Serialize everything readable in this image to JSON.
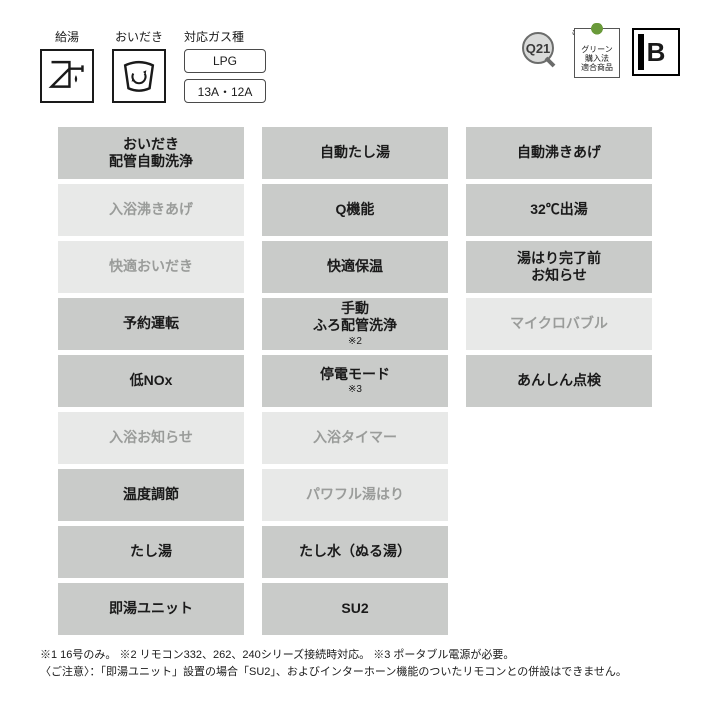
{
  "colors": {
    "active_bg": "#c9cbc9",
    "active_fg": "#1a1a1a",
    "inactive_bg": "#e8e9e8",
    "inactive_fg": "#9a9c9a",
    "border": "#1a1a1a",
    "page_bg": "#ffffff"
  },
  "top": {
    "icons": [
      {
        "label": "給湯",
        "name": "hot-water-icon"
      },
      {
        "label": "おいだき",
        "name": "reheat-icon"
      }
    ],
    "gas_label": "対応ガス種",
    "gas_types": [
      "LPG",
      "13A・12A"
    ],
    "q21_note": "※1",
    "green_text": "グリーン\n購入法\n適合商品",
    "b_text": "B"
  },
  "grid": {
    "cols": 3,
    "cells": [
      {
        "lines": [
          "おいだき",
          "配管自動洗浄"
        ],
        "active": true
      },
      {
        "lines": [
          "自動たし湯"
        ],
        "active": true
      },
      {
        "lines": [
          "自動沸きあげ"
        ],
        "active": true
      },
      {
        "lines": [
          "入浴沸きあげ"
        ],
        "active": false
      },
      {
        "lines": [
          "Q機能"
        ],
        "active": true
      },
      {
        "lines": [
          "32℃出湯"
        ],
        "active": true
      },
      {
        "lines": [
          "快適おいだき"
        ],
        "active": false
      },
      {
        "lines": [
          "快適保温"
        ],
        "active": true
      },
      {
        "lines": [
          "湯はり完了前",
          "お知らせ"
        ],
        "active": true
      },
      {
        "lines": [
          "予約運転"
        ],
        "active": true
      },
      {
        "lines": [
          "手動",
          "ふろ配管洗浄"
        ],
        "sub": "※2",
        "active": true
      },
      {
        "lines": [
          "マイクロバブル"
        ],
        "active": false
      },
      {
        "lines": [
          "低NOx"
        ],
        "active": true
      },
      {
        "lines": [
          "停電モード"
        ],
        "sub": "※3",
        "active": true
      },
      {
        "lines": [
          "あんしん点検"
        ],
        "active": true
      },
      {
        "lines": [
          "入浴お知らせ"
        ],
        "active": false
      },
      {
        "lines": [
          "入浴タイマー"
        ],
        "active": false
      },
      null,
      {
        "lines": [
          "温度調節"
        ],
        "active": true
      },
      {
        "lines": [
          "パワフル湯はり"
        ],
        "active": false
      },
      null,
      {
        "lines": [
          "たし湯"
        ],
        "active": true
      },
      {
        "lines": [
          "たし水（ぬる湯）"
        ],
        "active": true
      },
      null,
      {
        "lines": [
          "即湯ユニット"
        ],
        "active": true
      },
      {
        "lines": [
          "SU2"
        ],
        "active": true
      },
      null
    ]
  },
  "footnotes": [
    "※1 16号のみ。 ※2 リモコン332、262、240シリーズ接続時対応。 ※3 ポータブル電源が必要。",
    "〈ご注意〉：「即湯ユニット」設置の場合「SU2」、およびインターホーン機能のついたリモコンとの併設はできません。"
  ]
}
